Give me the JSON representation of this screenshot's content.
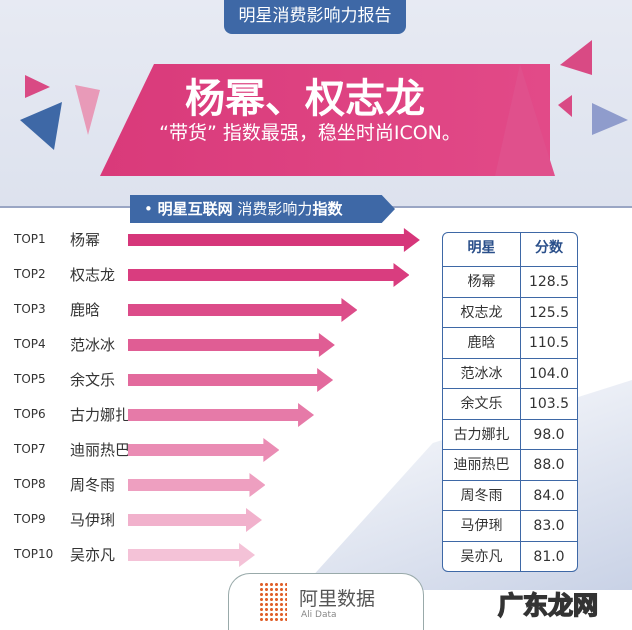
{
  "header": {
    "report_title": "明星消费影响力报告",
    "headline": "杨幂、权志龙",
    "subline": "“带货” 指数最强，稳坐时尚ICON。"
  },
  "section_title": {
    "bold1": "明星互联网",
    "normal": "消费影响力",
    "bold2": "指数"
  },
  "chart_data": {
    "type": "bar",
    "orientation": "horizontal",
    "title": "明星互联网消费影响力指数",
    "ranks": [
      "TOP1",
      "TOP2",
      "TOP3",
      "TOP4",
      "TOP5",
      "TOP6",
      "TOP7",
      "TOP8",
      "TOP9",
      "TOP10"
    ],
    "categories": [
      "杨幂",
      "权志龙",
      "鹿晗",
      "范冰冰",
      "余文乐",
      "古力娜扎",
      "迪丽热巴",
      "周冬雨",
      "马伊琍",
      "吴亦凡"
    ],
    "values": [
      128.5,
      125.5,
      110.5,
      104.0,
      103.5,
      98.0,
      88.0,
      84.0,
      83.0,
      81.0
    ],
    "colors": [
      "#d6367a",
      "#d93d7f",
      "#dc4c89",
      "#e05d94",
      "#e36a9d",
      "#e67aa8",
      "#ea8cb4",
      "#ee9fc0",
      "#f1b1cc",
      "#f4c2d7"
    ]
  },
  "table": {
    "headers": [
      "明星",
      "分数"
    ],
    "rows": [
      [
        "杨幂",
        "128.5"
      ],
      [
        "权志龙",
        "125.5"
      ],
      [
        "鹿晗",
        "110.5"
      ],
      [
        "范冰冰",
        "104.0"
      ],
      [
        "余文乐",
        "103.5"
      ],
      [
        "古力娜扎",
        "98.0"
      ],
      [
        "迪丽热巴",
        "88.0"
      ],
      [
        "周冬雨",
        "84.0"
      ],
      [
        "马伊琍",
        "83.0"
      ],
      [
        "吴亦凡",
        "81.0"
      ]
    ]
  },
  "footer": {
    "brand_cn": "阿里数据",
    "brand_en": "Ali Data",
    "watermark": "广东龙网"
  }
}
